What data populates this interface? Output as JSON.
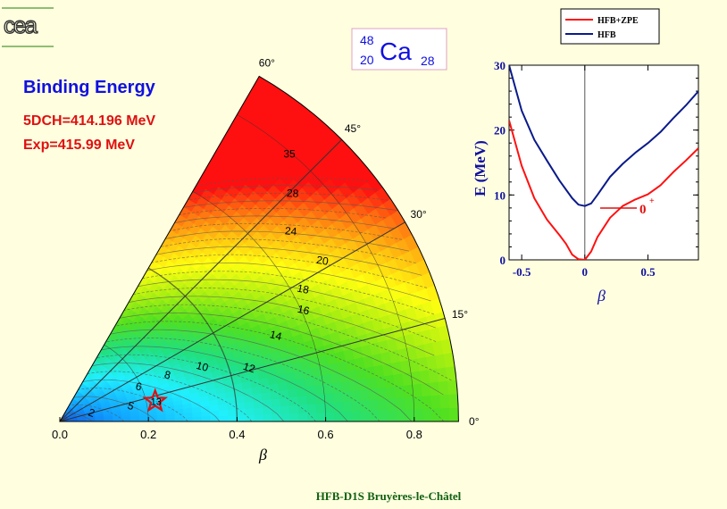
{
  "logo": {
    "text": "cea"
  },
  "nucleus": {
    "mass": "48",
    "charge": "20",
    "symbol": "Ca",
    "neutrons": "28"
  },
  "left_panel": {
    "title": "Binding Energy",
    "line1": "5DCH=414.196 MeV",
    "line2": "Exp=415.99 MeV"
  },
  "footer": "HFB-D1S Bruyères-le-Châtel",
  "colors": {
    "background": "#ffffe0",
    "title": "#1010e0",
    "info": "#e01010",
    "footer": "#106010",
    "hfb": "#0a1a8a",
    "hfb_zpe": "#ff1010"
  },
  "chart_data": [
    {
      "type": "heatmap",
      "subtype": "beta-gamma polar contour map",
      "xlabel": "β",
      "x_ticks": [
        "0.0",
        "0.2",
        "0.4",
        "0.6",
        "0.8"
      ],
      "beta_max": 0.9,
      "gamma_range_deg": [
        0,
        60
      ],
      "gamma_labels": [
        "0°",
        "15°",
        "30°",
        "45°",
        "60°"
      ],
      "colorscale": [
        "#1020d0",
        "#10a0ff",
        "#20f0ff",
        "#20e080",
        "#50e020",
        "#b0f010",
        "#ffff10",
        "#ffc010",
        "#ff7010",
        "#ff1010"
      ],
      "energy_range": [
        0,
        40
      ],
      "contour_labels": [
        {
          "text": "2",
          "beta": 0.07,
          "gamma": 10
        },
        {
          "text": "5",
          "beta": 0.16,
          "gamma": 10
        },
        {
          "text": "6",
          "beta": 0.19,
          "gamma": 22
        },
        {
          "text": "8",
          "beta": 0.26,
          "gamma": 22
        },
        {
          "text": "10",
          "beta": 0.34,
          "gamma": 20
        },
        {
          "text": "12",
          "beta": 0.44,
          "gamma": 15
        },
        {
          "text": "14",
          "beta": 0.52,
          "gamma": 21
        },
        {
          "text": "16",
          "beta": 0.6,
          "gamma": 24
        },
        {
          "text": "18",
          "beta": 0.62,
          "gamma": 28
        },
        {
          "text": "20",
          "beta": 0.69,
          "gamma": 31
        },
        {
          "text": "24",
          "beta": 0.67,
          "gamma": 39
        },
        {
          "text": "28",
          "beta": 0.73,
          "gamma": 44
        },
        {
          "text": "35",
          "beta": 0.79,
          "gamma": 49
        }
      ],
      "minimum": {
        "beta": 0.22,
        "gamma": 12,
        "label": "13"
      }
    },
    {
      "type": "line",
      "xlabel": "β",
      "ylabel": "E (MeV)",
      "xlim": [
        -0.6,
        0.9
      ],
      "ylim": [
        0,
        30
      ],
      "x_ticks": [
        "-0.5",
        "0",
        "0.5"
      ],
      "x_tick_values": [
        -0.5,
        0,
        0.5
      ],
      "y_ticks": [
        "0",
        "10",
        "20",
        "30"
      ],
      "y_tick_values": [
        0,
        10,
        20,
        30
      ],
      "legend": "top-right",
      "series": [
        {
          "name": "HFB+ZPE",
          "color": "#ff1010",
          "x": [
            -0.6,
            -0.5,
            -0.4,
            -0.3,
            -0.2,
            -0.15,
            -0.1,
            -0.05,
            0,
            0.05,
            0.1,
            0.2,
            0.3,
            0.4,
            0.5,
            0.6,
            0.7,
            0.8,
            0.9
          ],
          "y": [
            21.5,
            14.5,
            9.5,
            6.2,
            3.8,
            2.5,
            0.8,
            0.1,
            0.0,
            1.3,
            3.5,
            6.5,
            8.3,
            9.3,
            10.1,
            11.5,
            13.5,
            15.3,
            17.2
          ]
        },
        {
          "name": "HFB",
          "color": "#0a1a8a",
          "x": [
            -0.6,
            -0.5,
            -0.4,
            -0.3,
            -0.2,
            -0.1,
            -0.05,
            0,
            0.05,
            0.1,
            0.2,
            0.3,
            0.4,
            0.5,
            0.6,
            0.7,
            0.8,
            0.9
          ],
          "y": [
            30.0,
            23.0,
            18.5,
            15.3,
            12.2,
            9.5,
            8.5,
            8.3,
            8.7,
            10.0,
            12.8,
            14.8,
            16.5,
            18.0,
            19.7,
            21.8,
            23.8,
            26.0
          ]
        }
      ],
      "annotation": {
        "text": "0",
        "superscript": "+"
      }
    }
  ]
}
